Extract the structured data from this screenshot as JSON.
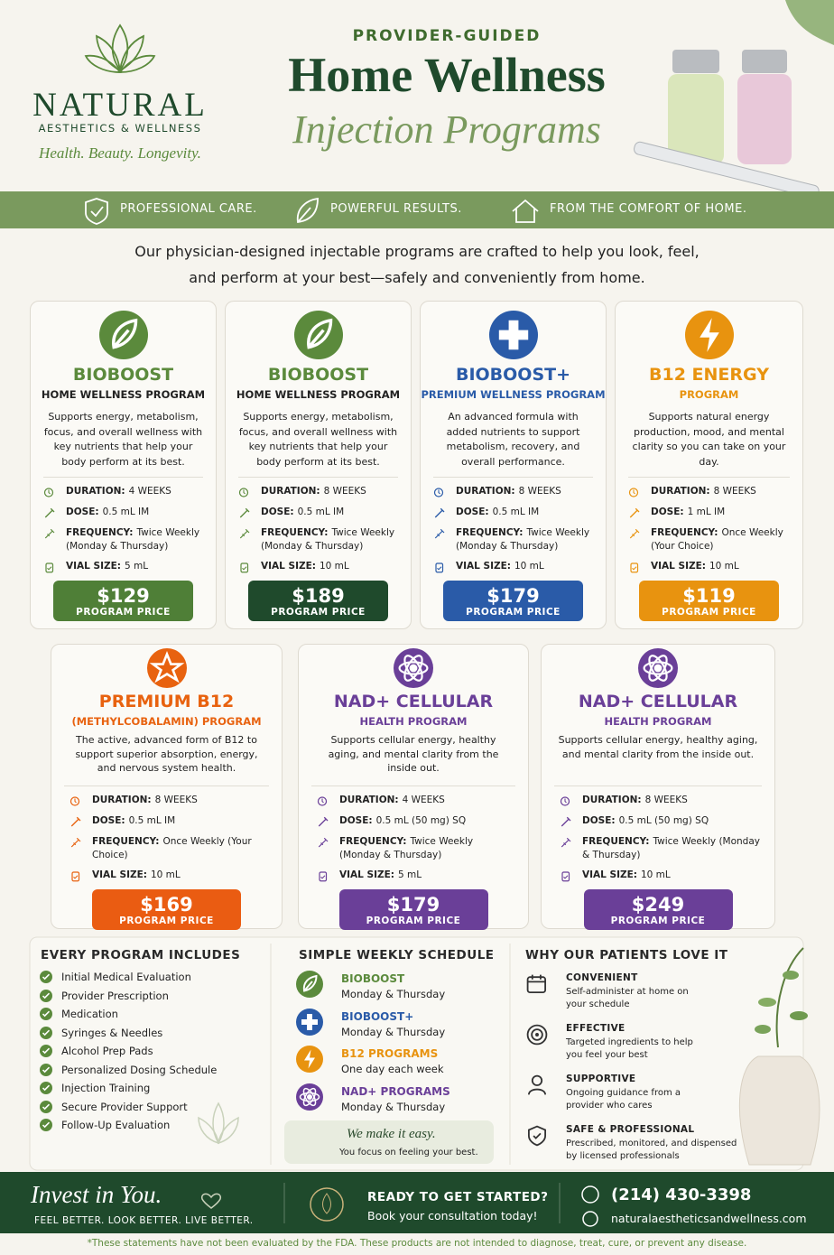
{
  "brand": {
    "name": "NATURAL",
    "sub": "AESTHETICS & WELLNESS",
    "tagline": "Health. Beauty. Longevity."
  },
  "header": {
    "kicker": "PROVIDER-GUIDED",
    "title": "Home Wellness",
    "script": "Injection Programs"
  },
  "banner": [
    "PROFESSIONAL CARE.",
    "POWERFUL RESULTS.",
    "FROM THE COMFORT OF HOME."
  ],
  "intro": [
    "Our physician-designed injectable programs are crafted to help you look, feel,",
    "and perform at your best—safely and conveniently from home."
  ],
  "programs": [
    {
      "name": "BIOBOOST",
      "subtitle": "HOME WELLNESS PROGRAM",
      "description": "Supports energy, metabolism, focus, and overall wellness with key nutrients that help your body perform at its best.",
      "details": [
        {
          "label": "DURATION:",
          "value": "4 WEEKS"
        },
        {
          "label": "DOSE:",
          "value": "0.5 mL IM"
        },
        {
          "label": "FREQUENCY:",
          "value": "Twice Weekly (Monday & Thursday)"
        },
        {
          "label": "VIAL SIZE:",
          "value": "5 mL"
        }
      ],
      "price": "$129",
      "price_label": "PROGRAM PRICE",
      "color": "#5b8a3c",
      "button_color": "#4f7f37",
      "subtitle_color": "#222222"
    },
    {
      "name": "BIOBOOST",
      "subtitle": "HOME WELLNESS PROGRAM",
      "description": "Supports energy, metabolism, focus, and overall wellness with key nutrients that help your body perform at its best.",
      "details": [
        {
          "label": "DURATION:",
          "value": "8 WEEKS"
        },
        {
          "label": "DOSE:",
          "value": "0.5 mL IM"
        },
        {
          "label": "FREQUENCY:",
          "value": "Twice Weekly (Monday & Thursday)"
        },
        {
          "label": "VIAL SIZE:",
          "value": "10 mL"
        }
      ],
      "price": "$189",
      "price_label": "PROGRAM PRICE",
      "color": "#5b8a3c",
      "button_color": "#1f4a2c",
      "subtitle_color": "#222222"
    },
    {
      "name": "BIOBOOST+",
      "subtitle": "PREMIUM WELLNESS PROGRAM",
      "description": "An advanced formula with added nutrients to support metabolism, recovery, and overall performance.",
      "details": [
        {
          "label": "DURATION:",
          "value": "8 WEEKS"
        },
        {
          "label": "DOSE:",
          "value": "0.5 mL IM"
        },
        {
          "label": "FREQUENCY:",
          "value": "Twice Weekly (Monday & Thursday)"
        },
        {
          "label": "VIAL SIZE:",
          "value": "10 mL"
        }
      ],
      "price": "$179",
      "price_label": "PROGRAM PRICE",
      "color": "#2a5ba8",
      "button_color": "#2a5ba8",
      "subtitle_color": "#2a5ba8"
    },
    {
      "name": "B12 ENERGY",
      "subtitle": "PROGRAM",
      "description": "Supports natural energy production, mood, and mental clarity so you can take on your day.",
      "details": [
        {
          "label": "DURATION:",
          "value": "8 WEEKS"
        },
        {
          "label": "DOSE:",
          "value": "1 mL IM"
        },
        {
          "label": "FREQUENCY:",
          "value": "Once Weekly (Your Choice)"
        },
        {
          "label": "VIAL SIZE:",
          "value": "10 mL"
        }
      ],
      "price": "$119",
      "price_label": "PROGRAM PRICE",
      "color": "#e8930f",
      "button_color": "#e8930f",
      "subtitle_color": "#e8930f"
    },
    {
      "name": "PREMIUM B12",
      "subtitle": "(METHYLCOBALAMIN) PROGRAM",
      "description": "The active, advanced form of B12 to support superior absorption, energy, and nervous system health.",
      "details": [
        {
          "label": "DURATION:",
          "value": "8 WEEKS"
        },
        {
          "label": "DOSE:",
          "value": "0.5 mL IM"
        },
        {
          "label": "FREQUENCY:",
          "value": "Once Weekly (Your Choice)"
        },
        {
          "label": "VIAL SIZE:",
          "value": "10 mL"
        }
      ],
      "price": "$169",
      "price_label": "PROGRAM PRICE",
      "color": "#e8620f",
      "button_color": "#ea5c12",
      "subtitle_color": "#e8620f"
    },
    {
      "name": "NAD+ CELLULAR",
      "subtitle": "HEALTH PROGRAM",
      "description": "Supports cellular energy, healthy aging, and mental clarity from the inside out.",
      "details": [
        {
          "label": "DURATION:",
          "value": "4 WEEKS"
        },
        {
          "label": "DOSE:",
          "value": "0.5 mL (50 mg) SQ"
        },
        {
          "label": "FREQUENCY:",
          "value": "Twice Weekly (Monday & Thursday)"
        },
        {
          "label": "VIAL SIZE:",
          "value": "5 mL"
        }
      ],
      "price": "$179",
      "price_label": "PROGRAM PRICE",
      "color": "#6a3f98",
      "button_color": "#6a3f98",
      "subtitle_color": "#6a3f98"
    },
    {
      "name": "NAD+ CELLULAR",
      "subtitle": "HEALTH PROGRAM",
      "description": "Supports cellular energy, healthy aging, and mental clarity from the inside out.",
      "details": [
        {
          "label": "DURATION:",
          "value": "8 WEEKS"
        },
        {
          "label": "DOSE:",
          "value": "0.5 mL (50 mg) SQ"
        },
        {
          "label": "FREQUENCY:",
          "value": "Twice Weekly (Monday & Thursday)"
        },
        {
          "label": "VIAL SIZE:",
          "value": "10 mL"
        }
      ],
      "price": "$249",
      "price_label": "PROGRAM PRICE",
      "color": "#6a3f98",
      "button_color": "#6a3f98",
      "subtitle_color": "#6a3f98"
    }
  ],
  "includes": {
    "title": "EVERY PROGRAM INCLUDES",
    "items": [
      "Initial Medical Evaluation",
      "Provider Prescription",
      "Medication",
      "Syringes & Needles",
      "Alcohol Prep Pads",
      "Personalized Dosing Schedule",
      "Injection Training",
      "Secure Provider Support",
      "Follow-Up Evaluation"
    ]
  },
  "schedule": {
    "title": "SIMPLE WEEKLY SCHEDULE",
    "items": [
      {
        "name": "BIOBOOST",
        "days": "Monday & Thursday",
        "color": "#5b8a3c"
      },
      {
        "name": "BIOBOOST+",
        "days": "Monday & Thursday",
        "color": "#2a5ba8"
      },
      {
        "name": "B12 PROGRAMS",
        "days": "One day each week",
        "color": "#e8930f"
      },
      {
        "name": "NAD+ PROGRAMS",
        "days": "Monday & Thursday",
        "color": "#6a3f98"
      }
    ],
    "note": {
      "title": "We make it easy.",
      "text": "You focus on feeling your best."
    }
  },
  "why": {
    "title": "WHY OUR PATIENTS LOVE IT",
    "items": [
      {
        "title": "CONVENIENT",
        "text": "Self-administer at home on your schedule"
      },
      {
        "title": "EFFECTIVE",
        "text": "Targeted ingredients to help you feel your best"
      },
      {
        "title": "SUPPORTIVE",
        "text": "Ongoing guidance from a provider who cares"
      },
      {
        "title": "SAFE & PROFESSIONAL",
        "text": "Prescribed, monitored, and dispensed by licensed professionals"
      }
    ]
  },
  "footer": {
    "slogan": "Invest in You.",
    "tagline": "FEEL BETTER. LOOK BETTER. LIVE BETTER.",
    "cta_title": "READY TO GET STARTED?",
    "cta_text": "Book your consultation today!",
    "phone": "(214) 430-3398",
    "website": "naturalaestheticsandwellness.com"
  },
  "disclaimer": "*These statements have not been evaluated by the FDA. These products are not intended to diagnose, treat, cure, or prevent any disease."
}
